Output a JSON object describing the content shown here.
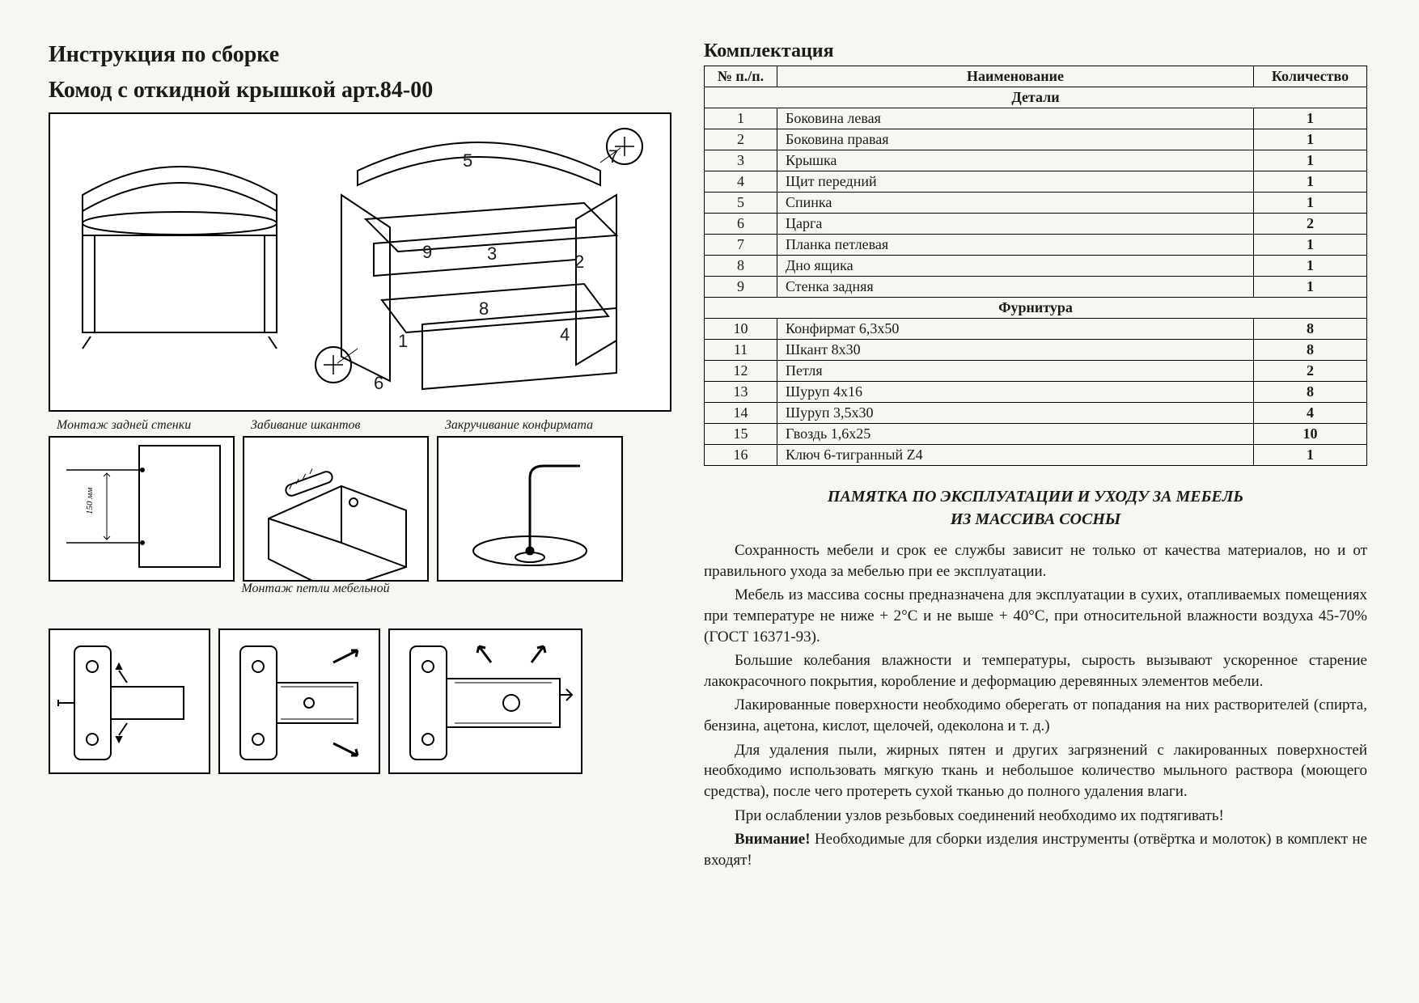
{
  "title_line1": "Инструкция по сборке",
  "title_line2": "Комод  с откидной крышкой арт.84-00",
  "parts_title": "Комплектация",
  "table": {
    "headers": [
      "№ п./п.",
      "Наименование",
      "Количество"
    ],
    "section1": "Детали",
    "rows1": [
      [
        "1",
        "Боковина левая",
        "1"
      ],
      [
        "2",
        "Боковина правая",
        "1"
      ],
      [
        "3",
        "Крышка",
        "1"
      ],
      [
        "4",
        "Щит передний",
        "1"
      ],
      [
        "5",
        "Спинка",
        "1"
      ],
      [
        "6",
        "Царга",
        "2"
      ],
      [
        "7",
        "Планка петлевая",
        "1"
      ],
      [
        "8",
        "Дно ящика",
        "1"
      ],
      [
        "9",
        "Стенка задняя",
        "1"
      ]
    ],
    "section2": "Фурнитура",
    "rows2": [
      [
        "10",
        "Конфирмат 6,3х50",
        "8"
      ],
      [
        "11",
        "Шкант 8х30",
        "8"
      ],
      [
        "12",
        "Петля",
        "2"
      ],
      [
        "13",
        "Шуруп 4х16",
        "8"
      ],
      [
        "14",
        "Шуруп 3,5х30",
        "4"
      ],
      [
        "15",
        "Гвоздь 1,6х25",
        "10"
      ],
      [
        "16",
        "Ключ 6-тигранный Z4",
        "1"
      ]
    ]
  },
  "steps": {
    "s1": "Монтаж задней стенки",
    "s2": "Забивание шкантов",
    "s3": "Закручивание конфирмата",
    "hinge": "Монтаж петли мебельной",
    "dim_150": "150 мм"
  },
  "memo_title1": "ПАМЯТКА ПО ЭКСПЛУАТАЦИИ И УХОДУ ЗА МЕБЕЛЬ",
  "memo_title2": "ИЗ МАССИВА СОСНЫ",
  "paragraphs": [
    "Сохранность мебели и срок ее службы зависит не только от качества материалов, но и от правильного ухода за мебелью при ее эксплуатации.",
    "Мебель из массива сосны предназначена для эксплуатации в сухих, отапливаемых помещениях при температуре не ниже + 2°С и не выше + 40°С, при относительной влажности воздуха 45-70% (ГОСТ 16371-93).",
    "Большие колебания влажности и температуры, сырость вызывают ускоренное старение лакокрасочного покрытия, коробление и деформацию деревянных элементов мебели.",
    "Лакированные поверхности необходимо оберегать от попадания на них растворителей (спирта, бензина, ацетона, кислот, щелочей, одеколона и т. д.)",
    "Для удаления пыли, жирных пятен и других загрязнений с лакированных поверхностей необходимо использовать мягкую ткань и небольшое количество мыльного раствора (моющего средства), после чего протереть сухой тканью до полного удаления влаги.",
    "При ослаблении узлов резьбовых соединений необходимо их подтягивать!"
  ],
  "warning_bold": "Внимание!",
  "warning_rest": " Необходимые для сборки изделия инструменты (отвёртка и молоток) в комплект не входят!",
  "callouts": [
    "1",
    "2",
    "3",
    "4",
    "5",
    "6",
    "7",
    "8",
    "9"
  ],
  "colors": {
    "page_bg": "#f8f6f0",
    "line": "#000000",
    "box_bg": "#ffffff"
  }
}
